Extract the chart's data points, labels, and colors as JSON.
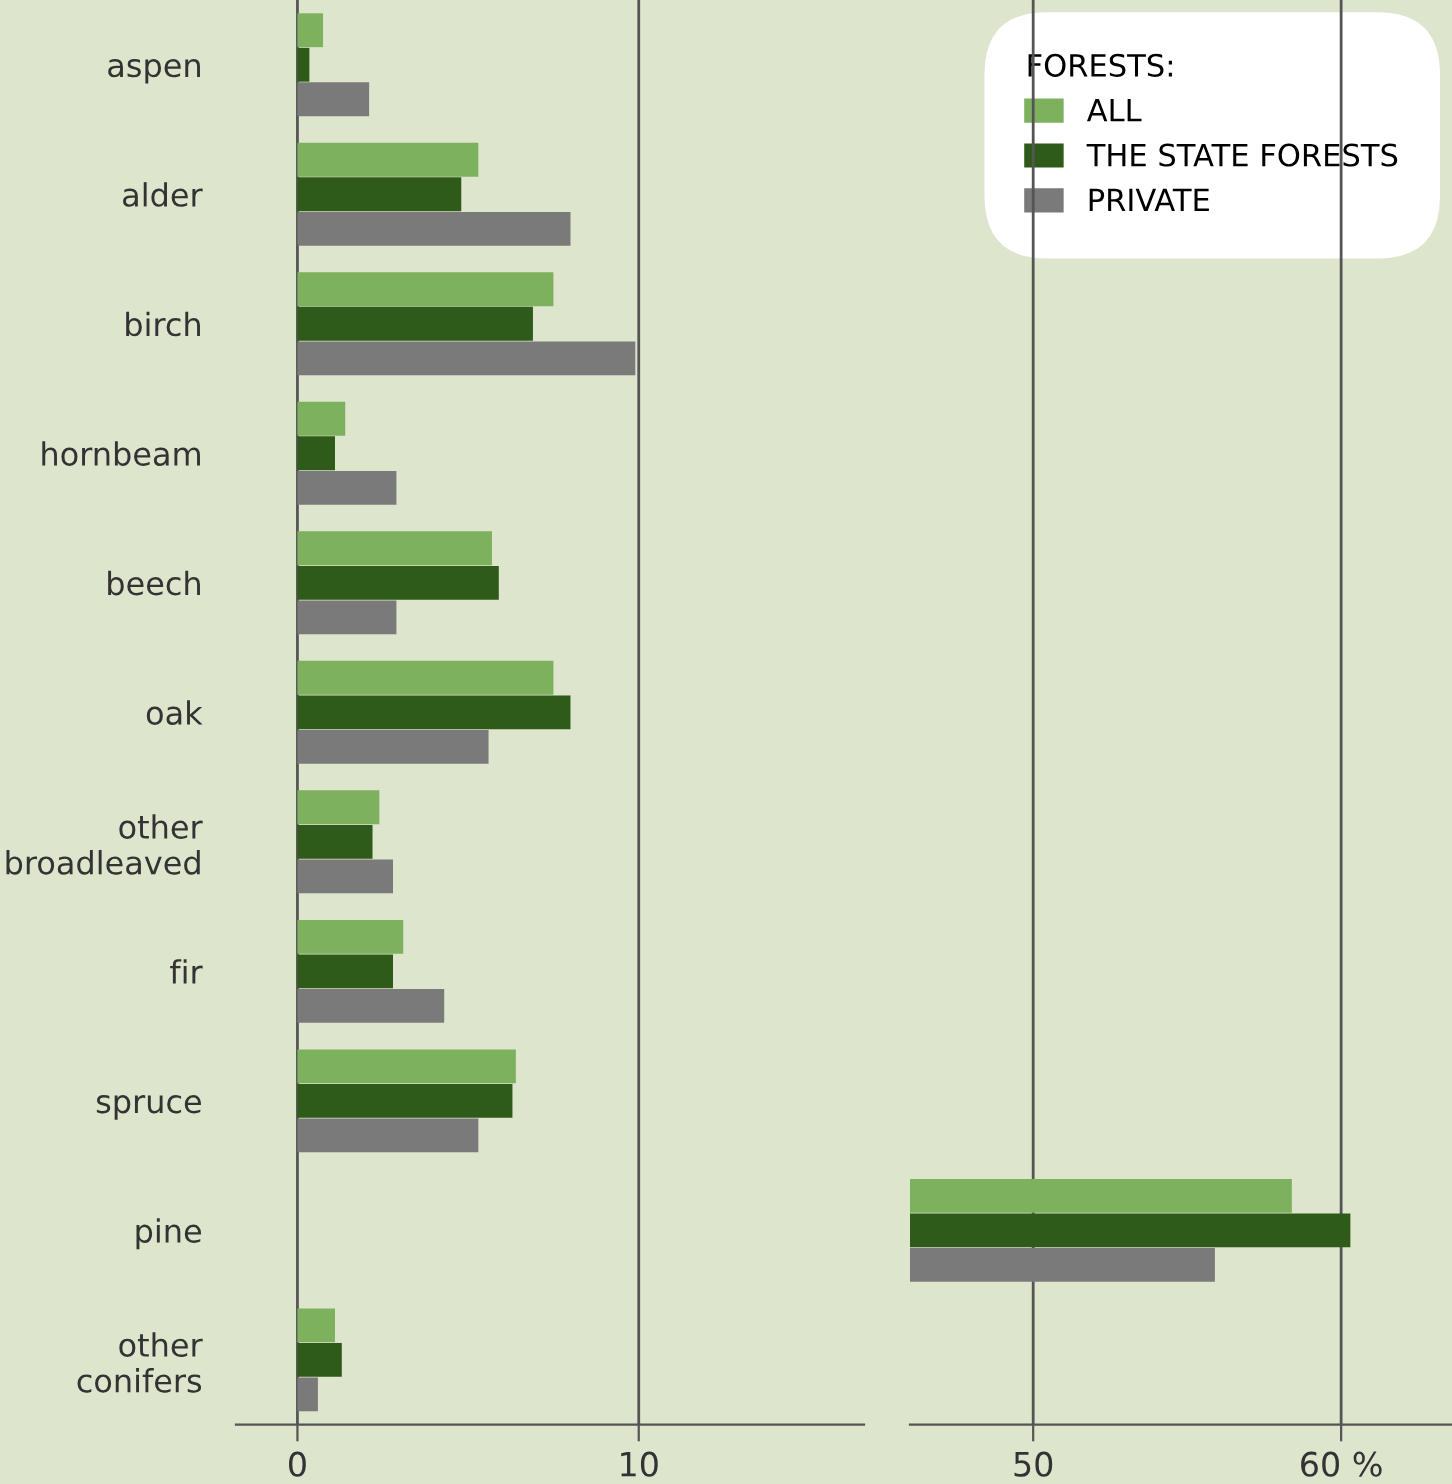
{
  "chart_data": [
    {
      "type": "bar",
      "orientation": "horizontal",
      "categories": [
        "aspen",
        "alder",
        "birch",
        "hornbeam",
        "beech",
        "oak",
        "other\nbroadleaved",
        "fir",
        "spruce",
        "pine",
        "other\nconifers"
      ],
      "series": [
        {
          "name": "ALL",
          "color": "#7db15e",
          "values": [
            0.75,
            5.3,
            7.5,
            1.4,
            5.7,
            7.5,
            2.4,
            3.1,
            6.4,
            null,
            1.1
          ]
        },
        {
          "name": "THE STATE FORESTS",
          "color": "#2e5a1a",
          "values": [
            0.35,
            4.8,
            6.9,
            1.1,
            5.9,
            8.0,
            2.2,
            2.8,
            6.3,
            null,
            1.3
          ]
        },
        {
          "name": "PRIVATE",
          "color": "#7a7a7a",
          "values": [
            2.1,
            8.0,
            9.9,
            2.9,
            2.9,
            5.6,
            2.8,
            4.3,
            5.3,
            null,
            0.6
          ]
        }
      ],
      "legend_title": "FORESTS:",
      "legend": "top right",
      "xlim": [
        -1.8,
        16.6
      ],
      "xticks": [
        0,
        10
      ],
      "grid": "x"
    },
    {
      "type": "bar",
      "orientation": "horizontal",
      "categories": [
        null,
        null,
        null,
        null,
        null,
        null,
        null,
        null,
        null,
        null,
        null
      ],
      "series": [
        {
          "color": "#7db15e",
          "values": [
            null,
            null,
            null,
            null,
            null,
            null,
            null,
            null,
            null,
            58.4,
            null
          ]
        },
        {
          "color": "#2e5a1a",
          "values": [
            null,
            null,
            null,
            null,
            null,
            null,
            null,
            null,
            null,
            60.3,
            null
          ]
        },
        {
          "color": "#7a7a7a",
          "values": [
            null,
            null,
            null,
            null,
            null,
            null,
            null,
            null,
            null,
            55.9,
            null
          ]
        }
      ],
      "xlim": [
        46.0,
        63.6
      ],
      "xticks": [
        50,
        {
          "value": 60,
          "label": "60 %"
        }
      ],
      "tick_labels": "x",
      "grid": "x"
    }
  ]
}
